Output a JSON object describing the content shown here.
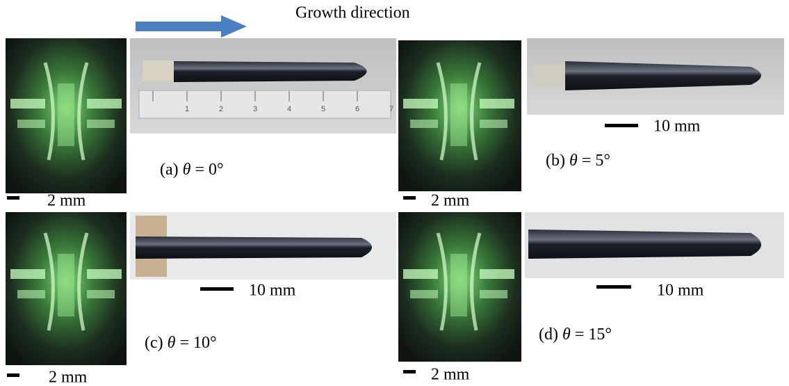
{
  "header": {
    "title": "Growth direction"
  },
  "panels": [
    {
      "prefix": "(a)",
      "symbol": "θ",
      "value": "= 0°",
      "laue_scale": "2 mm",
      "ruler_labels": [
        "1",
        "2",
        "3",
        "4",
        "5",
        "6",
        "7"
      ]
    },
    {
      "prefix": "(b)",
      "symbol": "θ",
      "value": "= 5°",
      "laue_scale": "2 mm",
      "photo_scale": "10 mm"
    },
    {
      "prefix": "(c)",
      "symbol": "θ",
      "value": "= 10°",
      "laue_scale": "2 mm",
      "photo_scale": "10 mm"
    },
    {
      "prefix": "(d)",
      "symbol": "θ",
      "value": "= 15°",
      "laue_scale": "2 mm",
      "photo_scale": "10 mm"
    }
  ]
}
